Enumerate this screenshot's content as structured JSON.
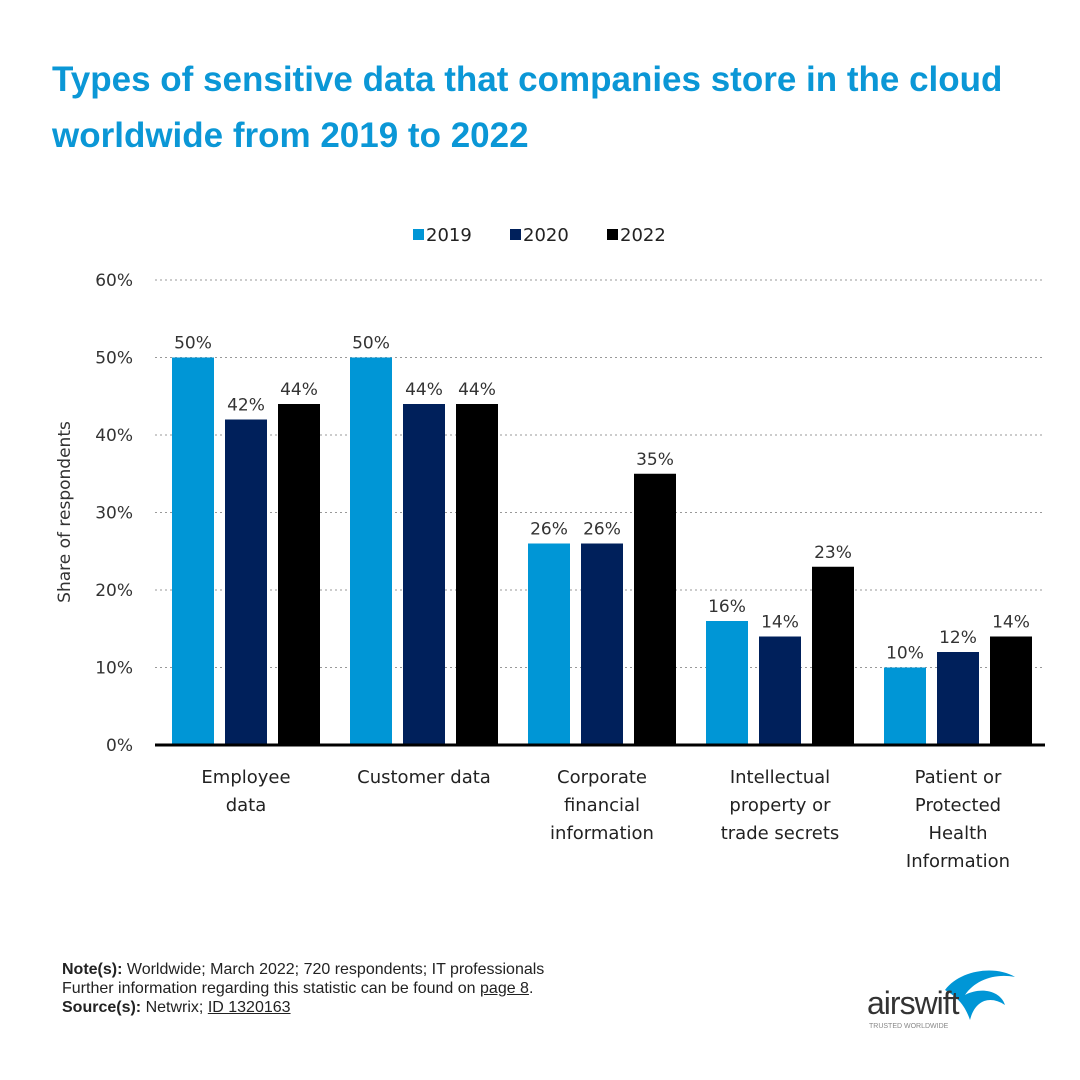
{
  "title": "Types of sensitive data that companies store in the cloud worldwide from 2019 to 2022",
  "chart_data": {
    "type": "bar",
    "categories": [
      [
        "Employee",
        "data"
      ],
      [
        "Customer data"
      ],
      [
        "Corporate",
        "financial",
        "information"
      ],
      [
        "Intellectual",
        "property or",
        "trade secrets"
      ],
      [
        "Patient or",
        "Protected",
        "Health",
        "Information"
      ]
    ],
    "series": [
      {
        "name": "2019",
        "color": "#0096d6",
        "values": [
          50,
          50,
          26,
          16,
          10
        ]
      },
      {
        "name": "2020",
        "color": "#00205b",
        "values": [
          42,
          44,
          26,
          14,
          12
        ]
      },
      {
        "name": "2022",
        "color": "#000000",
        "values": [
          44,
          44,
          35,
          23,
          14
        ]
      }
    ],
    "ylabel": "Share of respondents",
    "ylim": [
      0,
      60
    ],
    "yticks": [
      "0%",
      "10%",
      "20%",
      "30%",
      "40%",
      "50%",
      "60%"
    ],
    "value_suffix": "%",
    "grid": true,
    "legend": "top-center"
  },
  "footer": {
    "note_label": "Note(s):",
    "note_text": "Worldwide; March 2022; 720 respondents; IT professionals",
    "further_text": "Further information regarding this statistic can be found on",
    "further_link": "page 8",
    "source_label": "Source(s):",
    "source_text": "Netwrix;",
    "source_link": "ID 1320163"
  },
  "logo": {
    "name": "airswift",
    "tagline": "TRUSTED WORLDWIDE",
    "color": "#0096d6"
  }
}
